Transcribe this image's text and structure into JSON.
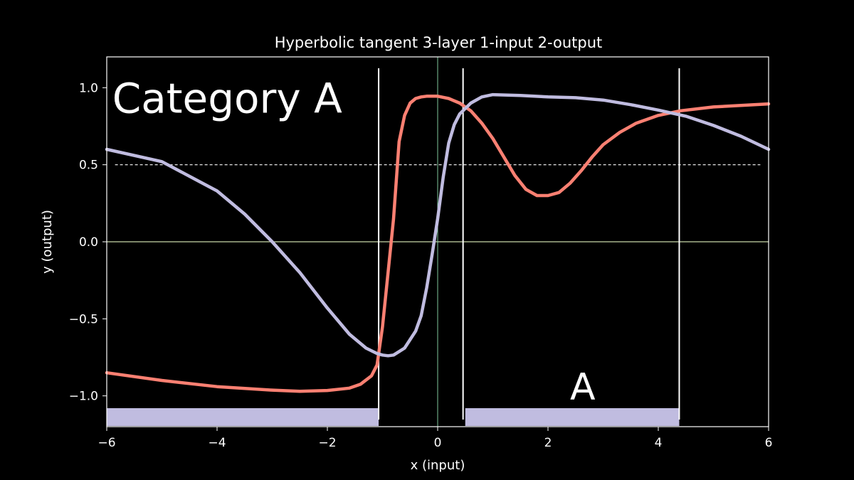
{
  "chart_data": {
    "type": "line",
    "title": "Hyperbolic tangent 3-layer 1-input 2-output",
    "xlabel": "x (input)",
    "ylabel": "y (output)",
    "xlim": [
      -6,
      6
    ],
    "ylim": [
      -1.2,
      1.2
    ],
    "x_ticks": [
      -6,
      -4,
      -2,
      0,
      2,
      4,
      6
    ],
    "x_tick_labels": [
      "−6",
      "−4",
      "−2",
      "0",
      "2",
      "4",
      "6"
    ],
    "y_ticks": [
      -1.0,
      -0.5,
      0.0,
      0.5,
      1.0
    ],
    "y_tick_labels": [
      "−1.0",
      "−0.5",
      "0.0",
      "0.5",
      "1.0"
    ],
    "grid": false,
    "series": [
      {
        "color": "#fa8072",
        "x": [
          -6,
          -5,
          -4,
          -3,
          -2.5,
          -2,
          -1.6,
          -1.4,
          -1.2,
          -1.1,
          -1.0,
          -0.9,
          -0.8,
          -0.7,
          -0.6,
          -0.5,
          -0.4,
          -0.3,
          -0.2,
          -0.1,
          0,
          0.2,
          0.4,
          0.6,
          0.8,
          1.0,
          1.2,
          1.4,
          1.6,
          1.8,
          2.0,
          2.2,
          2.4,
          2.6,
          2.8,
          3.0,
          3.3,
          3.6,
          4.0,
          4.4,
          5.0,
          6.0
        ],
        "y": [
          -0.85,
          -0.9,
          -0.94,
          -0.963,
          -0.97,
          -0.965,
          -0.95,
          -0.925,
          -0.87,
          -0.8,
          -0.55,
          -0.2,
          0.15,
          0.65,
          0.82,
          0.9,
          0.93,
          0.94,
          0.945,
          0.945,
          0.945,
          0.93,
          0.9,
          0.85,
          0.77,
          0.67,
          0.55,
          0.43,
          0.34,
          0.3,
          0.3,
          0.32,
          0.38,
          0.46,
          0.55,
          0.63,
          0.71,
          0.77,
          0.82,
          0.85,
          0.875,
          0.895
        ]
      },
      {
        "color": "#c0bce0",
        "x": [
          -6,
          -5,
          -4,
          -3.5,
          -3,
          -2.5,
          -2,
          -1.6,
          -1.3,
          -1.1,
          -1.0,
          -0.9,
          -0.8,
          -0.6,
          -0.4,
          -0.3,
          -0.2,
          -0.1,
          0,
          0.1,
          0.2,
          0.3,
          0.4,
          0.6,
          0.8,
          1.0,
          1.5,
          2.0,
          2.5,
          3.0,
          3.5,
          4.0,
          4.5,
          5.0,
          5.5,
          6.0
        ],
        "y": [
          0.6,
          0.52,
          0.33,
          0.18,
          0.0,
          -0.2,
          -0.43,
          -0.6,
          -0.69,
          -0.725,
          -0.735,
          -0.74,
          -0.735,
          -0.69,
          -0.58,
          -0.48,
          -0.3,
          -0.08,
          0.15,
          0.42,
          0.64,
          0.76,
          0.83,
          0.9,
          0.94,
          0.955,
          0.95,
          0.94,
          0.935,
          0.92,
          0.89,
          0.855,
          0.815,
          0.755,
          0.685,
          0.6
        ]
      }
    ],
    "hlines": [
      {
        "y": 0.5,
        "x_range": [
          -5.85,
          5.85
        ],
        "style": "dashed",
        "color": "#ffffff"
      },
      {
        "y": 0.0,
        "color": "#c8d8a8"
      }
    ],
    "vlines": [
      {
        "x": -1.07,
        "color": "#ffffff"
      },
      {
        "x": 0.46,
        "color": "#ffffff"
      },
      {
        "x": 4.38,
        "color": "#ffffff"
      },
      {
        "x": 0.0,
        "color": "#7fc89b"
      }
    ],
    "bands": [
      {
        "x_range": [
          -6,
          -1.07
        ],
        "color": "#c0bce0"
      },
      {
        "x_range": [
          0.5,
          4.38
        ],
        "color": "#c0bce0"
      }
    ],
    "annotations": [
      {
        "text": "Category A",
        "x": -5.9,
        "y": 0.93
      },
      {
        "text": "A",
        "x": 2.4,
        "y": -0.93
      }
    ]
  }
}
